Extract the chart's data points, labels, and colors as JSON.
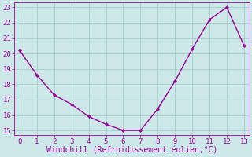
{
  "x": [
    0,
    1,
    2,
    3,
    4,
    5,
    6,
    7,
    8,
    9,
    10,
    11,
    12,
    13
  ],
  "y": [
    20.2,
    18.6,
    17.3,
    16.7,
    15.9,
    15.4,
    15.0,
    15.0,
    16.4,
    18.2,
    20.3,
    22.2,
    23.0,
    20.5
  ],
  "line_color": "#990099",
  "marker": "D",
  "marker_size": 2.0,
  "bg_color": "#cce8e8",
  "grid_color": "#aacccc",
  "xlabel": "Windchill (Refroidissement éolien,°C)",
  "xlabel_color": "#990099",
  "tick_color": "#990099",
  "spine_color": "#990099",
  "xlim": [
    -0.3,
    13.3
  ],
  "ylim": [
    14.7,
    23.3
  ],
  "yticks": [
    15,
    16,
    17,
    18,
    19,
    20,
    21,
    22,
    23
  ],
  "xticks": [
    0,
    1,
    2,
    3,
    4,
    5,
    6,
    7,
    8,
    9,
    10,
    11,
    12,
    13
  ],
  "line_width": 1.0,
  "tick_labelsize": 6.5,
  "xlabel_fontsize": 7.0
}
